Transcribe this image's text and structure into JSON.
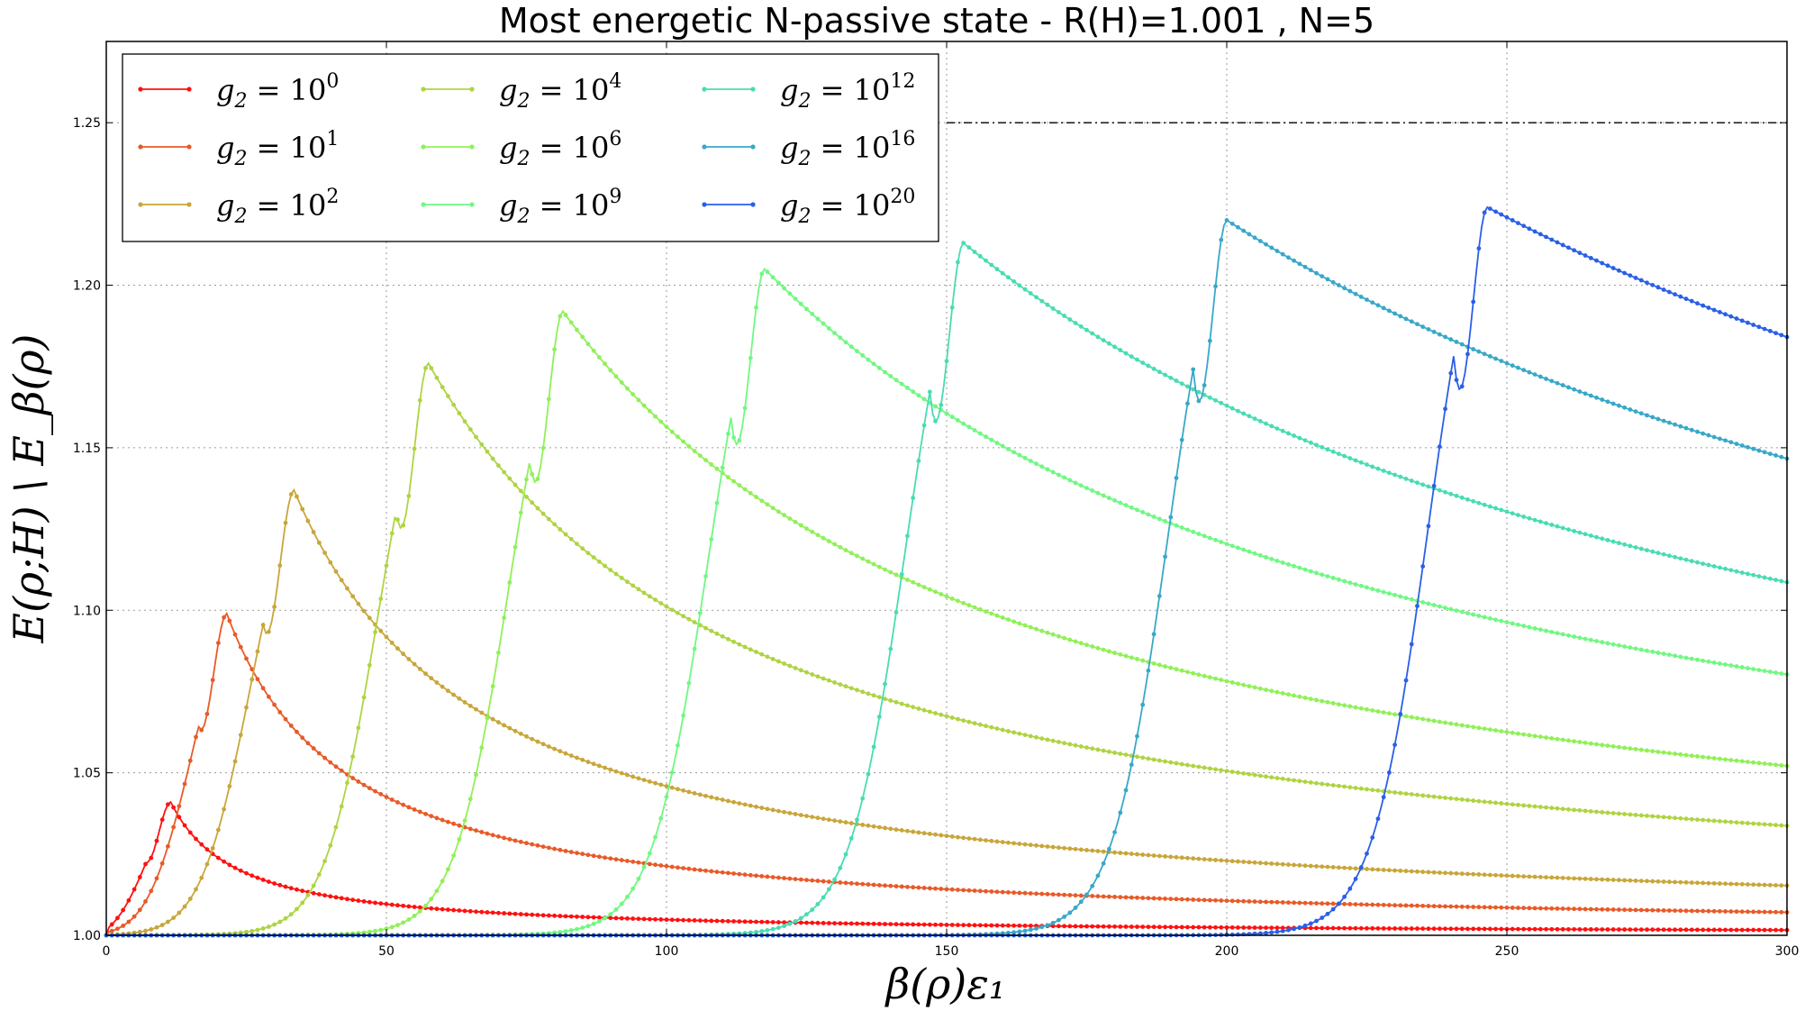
{
  "chart_data": {
    "type": "line",
    "title": "Most energetic N-passive state - R(H)=1.001 , N=5",
    "xlabel": "β(ρ)ε₁",
    "ylabel": "E(ρ;H) \\ E_β(ρ)",
    "xlim": [
      0,
      300
    ],
    "ylim": [
      1.0,
      1.275
    ],
    "xticks": [
      0,
      50,
      100,
      150,
      200,
      250,
      300
    ],
    "yticks": [
      1.0,
      1.05,
      1.1,
      1.15,
      1.2,
      1.25
    ],
    "ytick_labels": [
      "1.00",
      "1.05",
      "1.10",
      "1.15",
      "1.20",
      "1.25"
    ],
    "xtick_labels": [
      "0",
      "50",
      "100",
      "150",
      "200",
      "250",
      "300"
    ],
    "grid": true,
    "legend_position": "top-left",
    "legend_columns": 3,
    "reference_line": {
      "y": 1.25,
      "x_start": 150,
      "style": "dash-dot"
    },
    "series": [
      {
        "name": "g2 = 10^0",
        "label_base": "g",
        "label_sub": "2",
        "label_eq": "= 10",
        "label_exp": "0",
        "color": "#ff1010",
        "peak_x": 11.5,
        "peak_y": 1.041,
        "rise_width": 3.6,
        "y_end": 1.002
      },
      {
        "name": "g2 = 10^1",
        "label_base": "g",
        "label_sub": "2",
        "label_eq": "= 10",
        "label_exp": "1",
        "color": "#e85a28",
        "peak_x": 21.5,
        "peak_y": 1.099,
        "rise_width": 4.2,
        "y_end": 1.007
      },
      {
        "name": "g2 = 10^2",
        "label_base": "g",
        "label_sub": "2",
        "label_eq": "= 10",
        "label_exp": "2",
        "color": "#c8a63a",
        "peak_x": 33.5,
        "peak_y": 1.137,
        "rise_width": 4.6,
        "y_end": 1.015
      },
      {
        "name": "g2 = 10^4",
        "label_base": "g",
        "label_sub": "2",
        "label_eq": "= 10",
        "label_exp": "4",
        "color": "#aed442",
        "peak_x": 57.5,
        "peak_y": 1.176,
        "rise_width": 4.8,
        "y_end": 1.031
      },
      {
        "name": "g2 = 10^6",
        "label_base": "g",
        "label_sub": "2",
        "label_eq": "= 10",
        "label_exp": "6",
        "color": "#90f058",
        "peak_x": 81.5,
        "peak_y": 1.192,
        "rise_width": 4.9,
        "y_end": 1.047
      },
      {
        "name": "g2 = 10^9",
        "label_base": "g",
        "label_sub": "2",
        "label_eq": "= 10",
        "label_exp": "9",
        "color": "#70f882",
        "peak_x": 117.5,
        "peak_y": 1.205,
        "rise_width": 5.0,
        "y_end": 1.073
      },
      {
        "name": "g2 = 10^12",
        "label_base": "g",
        "label_sub": "2",
        "label_eq": "= 10",
        "label_exp": "12",
        "color": "#48dcb2",
        "peak_x": 153.0,
        "peak_y": 1.213,
        "rise_width": 5.0,
        "y_end": 1.1
      },
      {
        "name": "g2 = 10^16",
        "label_base": "g",
        "label_sub": "2",
        "label_eq": "= 10",
        "label_exp": "16",
        "color": "#38a8c8",
        "peak_x": 200.0,
        "peak_y": 1.22,
        "rise_width": 5.0,
        "y_end": 1.139
      },
      {
        "name": "g2 = 10^20",
        "label_base": "g",
        "label_sub": "2",
        "label_eq": "= 10",
        "label_exp": "20",
        "color": "#2a5fe8",
        "peak_x": 246.5,
        "peak_y": 1.224,
        "rise_width": 5.0,
        "y_end": 1.181
      }
    ]
  }
}
